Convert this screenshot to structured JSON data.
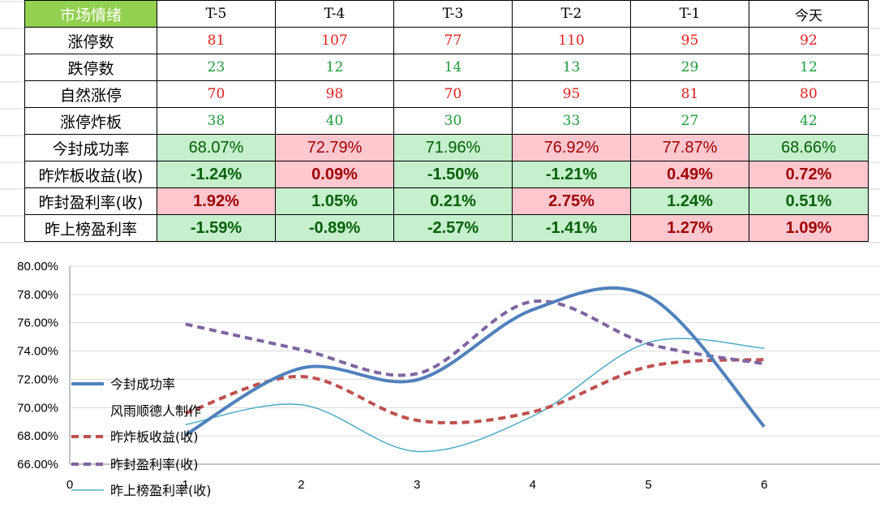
{
  "table": {
    "corner_label": "市场情绪",
    "headers": [
      "T-5",
      "T-4",
      "T-3",
      "T-2",
      "T-1",
      "今天"
    ],
    "colors": {
      "red_text": "#e0201c",
      "green_text": "#1f9c3c",
      "dark_red": "#9c0006",
      "dark_green": "#006100",
      "pink_fill": "#ffc7ce",
      "green_fill": "#c6efce",
      "corner_fill": "#92d050"
    },
    "count_rows": [
      {
        "label": "涨停数",
        "values": [
          "81",
          "107",
          "77",
          "110",
          "95",
          "92"
        ],
        "color": "red"
      },
      {
        "label": "跌停数",
        "values": [
          "23",
          "12",
          "14",
          "13",
          "29",
          "12"
        ],
        "color": "green"
      },
      {
        "label": "自然涨停",
        "values": [
          "70",
          "98",
          "70",
          "95",
          "81",
          "80"
        ],
        "color": "red"
      },
      {
        "label": "涨停炸板",
        "values": [
          "38",
          "40",
          "30",
          "33",
          "27",
          "42"
        ],
        "color": "green"
      }
    ],
    "pct_rows": [
      {
        "label": "今封成功率",
        "bold": false,
        "values": [
          "68.07%",
          "72.79%",
          "71.96%",
          "76.92%",
          "77.87%",
          "68.66%"
        ],
        "fills": [
          "green",
          "pink",
          "green",
          "pink",
          "pink",
          "green"
        ]
      },
      {
        "label": "昨炸板收益(收)",
        "bold": true,
        "values": [
          "-1.24%",
          "0.09%",
          "-1.50%",
          "-1.21%",
          "0.49%",
          "0.72%"
        ],
        "fills": [
          "green",
          "pink",
          "green",
          "green",
          "pink",
          "pink"
        ]
      },
      {
        "label": "昨封盈利率(收)",
        "bold": true,
        "values": [
          "1.92%",
          "1.05%",
          "0.21%",
          "2.75%",
          "1.24%",
          "0.51%"
        ],
        "fills": [
          "pink",
          "green",
          "green",
          "pink",
          "green",
          "green"
        ]
      },
      {
        "label": "昨上榜盈利率",
        "bold": true,
        "values": [
          "-1.59%",
          "-0.89%",
          "-2.57%",
          "-1.41%",
          "1.27%",
          "1.09%"
        ],
        "fills": [
          "green",
          "green",
          "green",
          "green",
          "pink",
          "pink"
        ]
      }
    ]
  },
  "chart_data": {
    "type": "line",
    "title": "",
    "xlabel": "",
    "ylabel": "",
    "x_ticks": [
      "0",
      "1",
      "2",
      "3",
      "4",
      "5",
      "6"
    ],
    "y_ticks": [
      "66.00%",
      "68.00%",
      "70.00%",
      "72.00%",
      "74.00%",
      "76.00%",
      "78.00%",
      "80.00%"
    ],
    "xlim": [
      0,
      7
    ],
    "ylim": [
      66,
      80
    ],
    "grid": true,
    "smooth": true,
    "legend_position": "left",
    "watermark_text": "风雨顺德人制作",
    "series": [
      {
        "name": "今封成功率",
        "x": [
          1,
          2,
          3,
          4,
          5,
          6
        ],
        "values": [
          68.07,
          72.79,
          71.96,
          76.92,
          77.87,
          68.66
        ],
        "color": "#4f81bd",
        "style": "solid-thick"
      },
      {
        "name": "昨炸板收益(收)",
        "x": [
          1,
          2,
          3,
          4,
          5,
          6
        ],
        "values": [
          69.6,
          72.2,
          69.1,
          69.7,
          72.9,
          73.4
        ],
        "color": "#c0504d",
        "style": "dash-thick"
      },
      {
        "name": "昨封盈利率(收)",
        "x": [
          1,
          2,
          3,
          4,
          5,
          6
        ],
        "values": [
          75.9,
          74.1,
          72.4,
          77.5,
          74.5,
          73.1
        ],
        "color": "#8064a2",
        "style": "dash-thick"
      },
      {
        "name": "昨上榜盈利率(收)",
        "x": [
          1,
          2,
          3,
          4,
          5,
          6
        ],
        "values": [
          68.8,
          70.2,
          66.9,
          69.4,
          74.6,
          74.2
        ],
        "color": "#4bacc6",
        "style": "solid-thin"
      }
    ]
  }
}
